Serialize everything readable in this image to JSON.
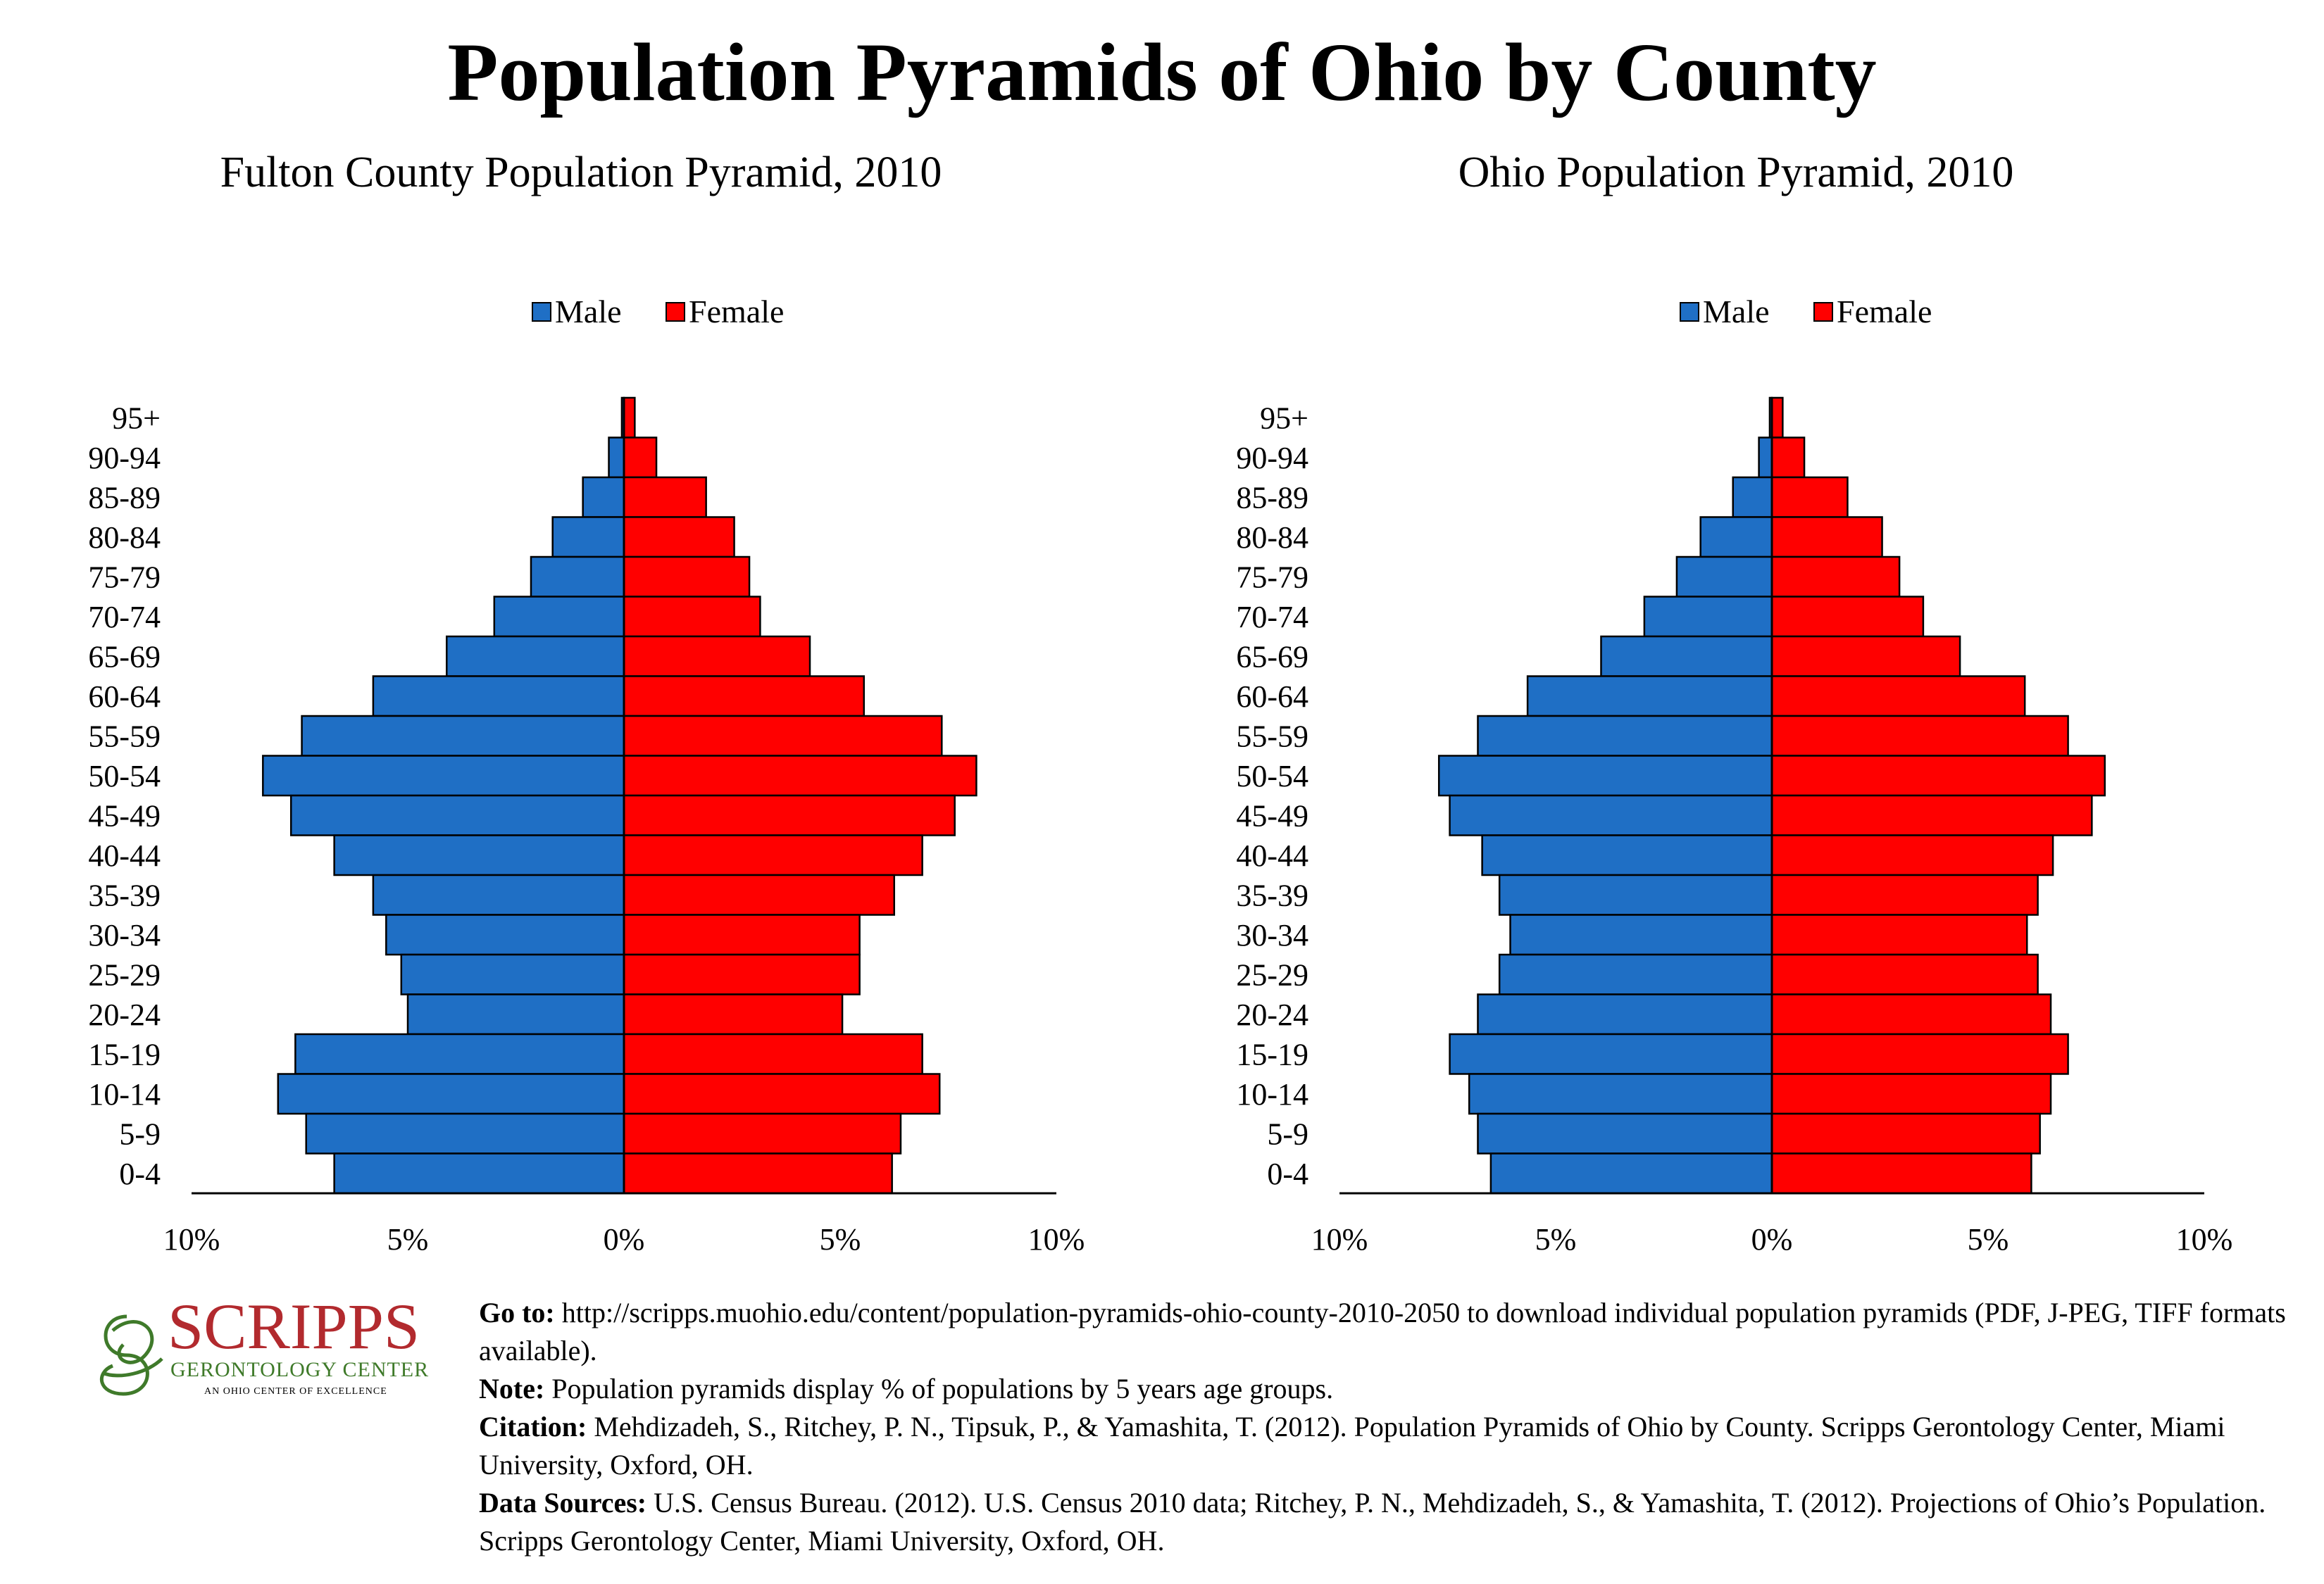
{
  "title": "Population Pyramids of Ohio by County",
  "colors": {
    "male": "#1f6fc5",
    "female": "#ff0000",
    "logo": "#b22a2e",
    "logo_green": "#3f7a2a"
  },
  "legend": {
    "male": "Male",
    "female": "Female"
  },
  "chart_data": [
    {
      "type": "bar",
      "title": "Fulton County Population Pyramid, 2010",
      "age_groups": [
        "95+",
        "90-94",
        "85-89",
        "80-84",
        "75-79",
        "70-74",
        "65-69",
        "60-64",
        "55-59",
        "50-54",
        "45-49",
        "40-44",
        "35-39",
        "30-34",
        "25-29",
        "20-24",
        "15-19",
        "10-14",
        "5-9",
        "0-4"
      ],
      "series": [
        {
          "name": "Male",
          "values": [
            0.05,
            0.35,
            0.95,
            1.65,
            2.15,
            3.0,
            4.1,
            5.8,
            7.45,
            8.35,
            7.7,
            6.7,
            5.8,
            5.5,
            5.15,
            5.0,
            7.6,
            8.0,
            7.35,
            6.7
          ]
        },
        {
          "name": "Female",
          "values": [
            0.25,
            0.75,
            1.9,
            2.55,
            2.9,
            3.15,
            4.3,
            5.55,
            7.35,
            8.15,
            7.65,
            6.9,
            6.25,
            5.45,
            5.45,
            5.05,
            6.9,
            7.3,
            6.4,
            6.2
          ]
        }
      ],
      "xlim": [
        -10,
        10
      ],
      "tick_labels": [
        "10%",
        "5%",
        "0%",
        "5%",
        "10%"
      ],
      "legend_position": "top-center"
    },
    {
      "type": "bar",
      "title": "Ohio Population Pyramid, 2010",
      "age_groups": [
        "95+",
        "90-94",
        "85-89",
        "80-84",
        "75-79",
        "70-74",
        "65-69",
        "60-64",
        "55-59",
        "50-54",
        "45-49",
        "40-44",
        "35-39",
        "30-34",
        "25-29",
        "20-24",
        "15-19",
        "10-14",
        "5-9",
        "0-4"
      ],
      "series": [
        {
          "name": "Male",
          "values": [
            0.05,
            0.3,
            0.9,
            1.65,
            2.2,
            2.95,
            3.95,
            5.65,
            6.8,
            7.7,
            7.45,
            6.7,
            6.3,
            6.05,
            6.3,
            6.8,
            7.45,
            7.0,
            6.8,
            6.5
          ]
        },
        {
          "name": "Female",
          "values": [
            0.25,
            0.75,
            1.75,
            2.55,
            2.95,
            3.5,
            4.35,
            5.85,
            6.85,
            7.7,
            7.4,
            6.5,
            6.15,
            5.9,
            6.15,
            6.45,
            6.85,
            6.45,
            6.2,
            6.0
          ]
        }
      ],
      "xlim": [
        -10,
        10
      ],
      "tick_labels": [
        "10%",
        "5%",
        "0%",
        "5%",
        "10%"
      ],
      "legend_position": "top-center"
    }
  ],
  "logo": {
    "name": "SCRIPPS",
    "sub": "GERONTOLOGY CENTER",
    "tagline": "AN OHIO CENTER OF EXCELLENCE"
  },
  "notes": {
    "goto_label": "Go to:",
    "goto_text": " http://scripps.muohio.edu/content/population-pyramids-ohio-county-2010-2050 to download individual population pyramids (PDF, J-PEG, TIFF formats available).",
    "note_label": "Note:",
    "note_text": " Population pyramids display % of populations by 5 years age groups.",
    "citation_label": "Citation:",
    "citation_text": " Mehdizadeh, S., Ritchey, P. N., Tipsuk, P., & Yamashita, T. (2012). Population Pyramids of Ohio by County. Scripps Gerontology Center, Miami University, Oxford, OH.",
    "sources_label": "Data Sources:",
    "sources_text": " U.S. Census Bureau. (2012). U.S. Census 2010 data; Ritchey, P. N., Mehdizadeh, S., & Yamashita, T. (2012). Projections of Ohio’s Population. Scripps Gerontology Center, Miami University, Oxford, OH."
  }
}
